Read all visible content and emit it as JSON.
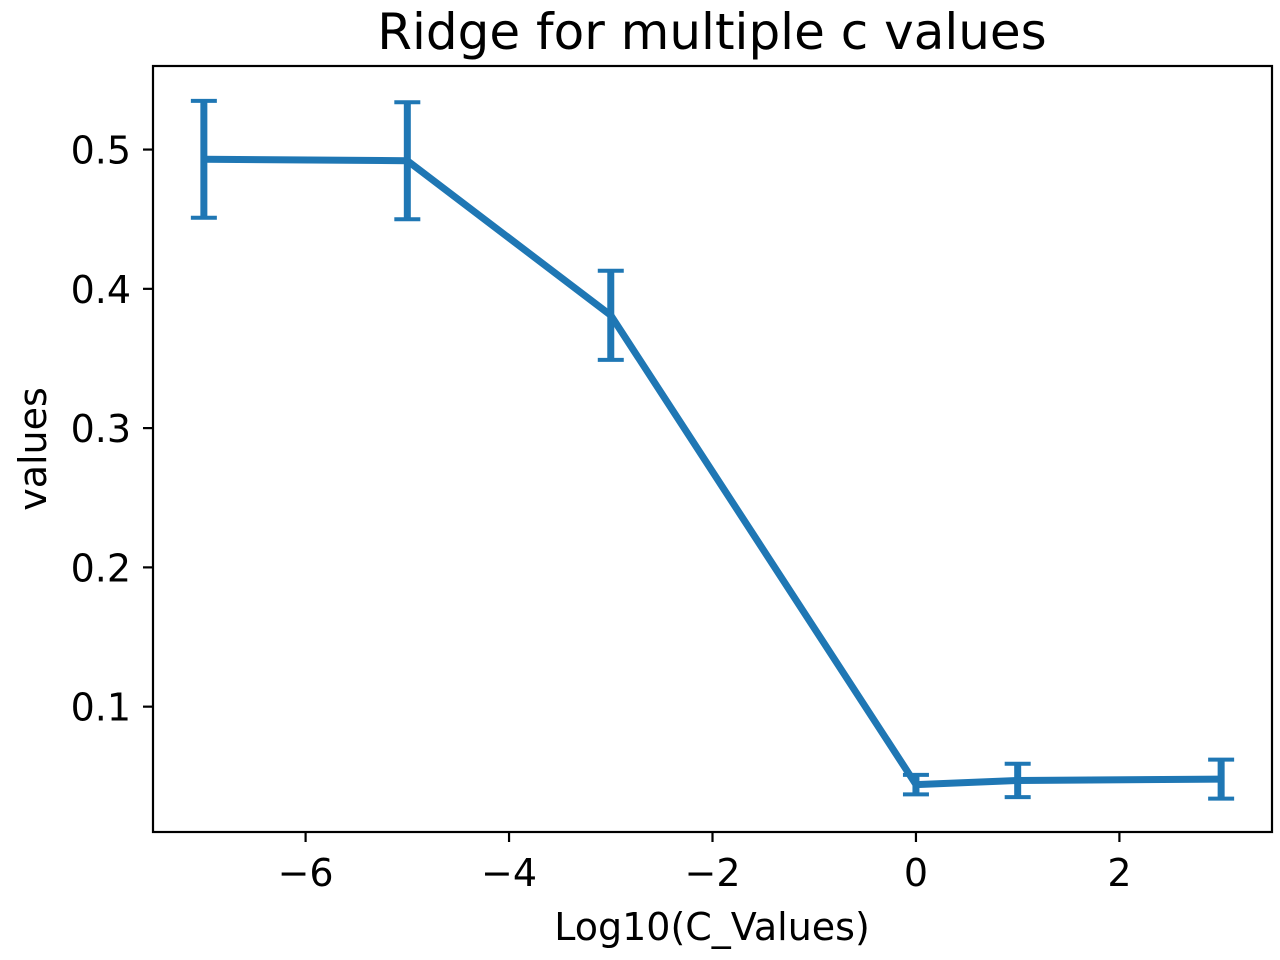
{
  "chart_data": {
    "type": "line",
    "title": "Ridge for multiple c values",
    "xlabel": "Log10(C_Values)",
    "ylabel": "values",
    "xlim": [
      -7.5,
      3.5
    ],
    "ylim": [
      0.01,
      0.56
    ],
    "xticks": [
      -6,
      -4,
      -2,
      0,
      2
    ],
    "xtick_labels": [
      "−6",
      "−4",
      "−2",
      "0",
      "2"
    ],
    "yticks": [
      0.1,
      0.2,
      0.3,
      0.4,
      0.5
    ],
    "ytick_labels": [
      "0.1",
      "0.2",
      "0.3",
      "0.4",
      "0.5"
    ],
    "grid": false,
    "color": "#1f77b4",
    "series": [
      {
        "x": [
          -7,
          -5,
          -3,
          0,
          1,
          3
        ],
        "y": [
          0.493,
          0.492,
          0.381,
          0.044,
          0.047,
          0.048
        ],
        "yerr": [
          0.042,
          0.042,
          0.032,
          0.007,
          0.012,
          0.014
        ]
      }
    ]
  }
}
